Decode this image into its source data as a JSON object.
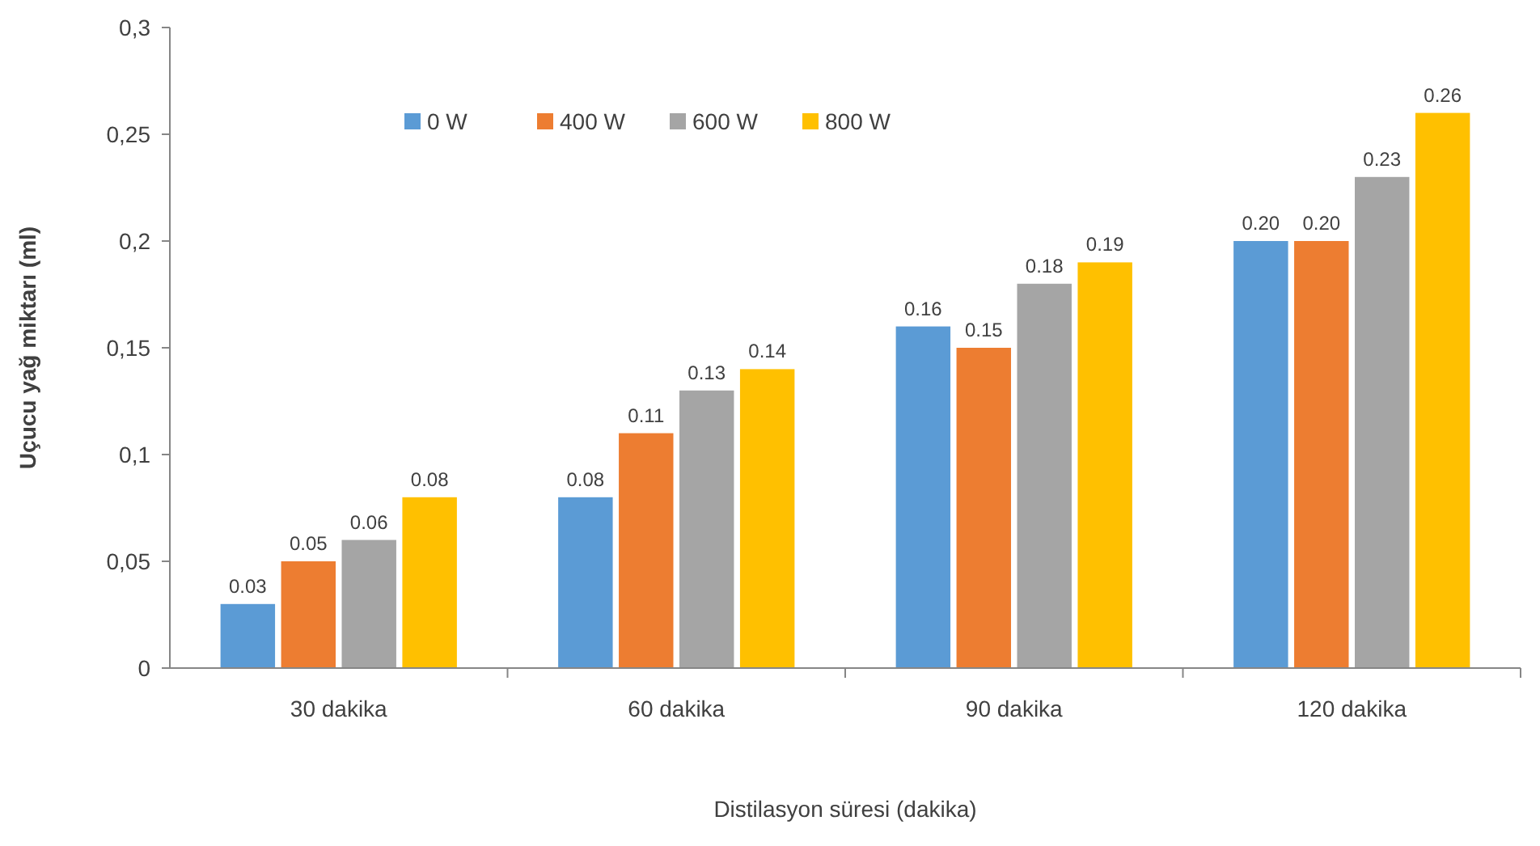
{
  "chart_data": {
    "type": "bar",
    "xlabel": "Distilasyon süresi (dakika)",
    "ylabel": "Uçucu yağ miktarı (ml)",
    "categories": [
      "30 dakika",
      "60 dakika",
      "90 dakika",
      "120 dakika"
    ],
    "series": [
      {
        "name": "0 W",
        "color": "#5b9bd5",
        "values": [
          0.03,
          0.08,
          0.16,
          0.2
        ],
        "value_labels": [
          "0.03",
          "0.08",
          "0.16",
          "0.20"
        ]
      },
      {
        "name": "400 W",
        "color": "#ed7d31",
        "values": [
          0.05,
          0.11,
          0.15,
          0.2
        ],
        "value_labels": [
          "0.05",
          "0.11",
          "0.15",
          "0.20"
        ]
      },
      {
        "name": "600 W",
        "color": "#a5a5a5",
        "values": [
          0.06,
          0.13,
          0.18,
          0.23
        ],
        "value_labels": [
          "0.06",
          "0.13",
          "0.18",
          "0.23"
        ]
      },
      {
        "name": "800 W",
        "color": "#ffc000",
        "values": [
          0.08,
          0.14,
          0.19,
          0.26
        ],
        "value_labels": [
          "0.08",
          "0.14",
          "0.19",
          "0.26"
        ]
      }
    ],
    "ylim": [
      0,
      0.3
    ],
    "yticks": [
      {
        "value": 0,
        "label": "0"
      },
      {
        "value": 0.05,
        "label": "0,05"
      },
      {
        "value": 0.1,
        "label": "0,1"
      },
      {
        "value": 0.15,
        "label": "0,15"
      },
      {
        "value": 0.2,
        "label": "0,2"
      },
      {
        "value": 0.25,
        "label": "0,25"
      },
      {
        "value": 0.3,
        "label": "0,3"
      }
    ],
    "grid": false,
    "legend": "top left"
  }
}
